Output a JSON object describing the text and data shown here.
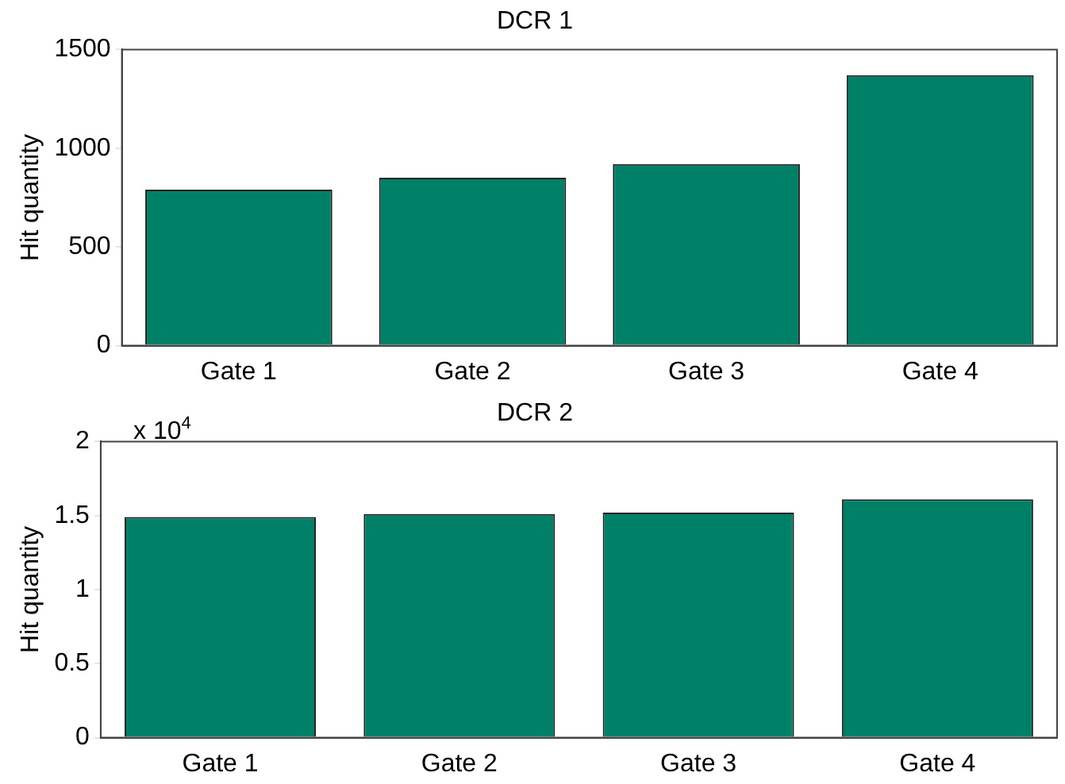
{
  "chart_data": [
    {
      "type": "bar",
      "title": "DCR 1",
      "ylabel": "Hit quantity",
      "categories": [
        "Gate 1",
        "Gate 2",
        "Gate 3",
        "Gate 4"
      ],
      "values": [
        790,
        850,
        920,
        1370
      ],
      "color": "#008066",
      "ylim": [
        0,
        1500
      ],
      "yticks": [
        0,
        500,
        1000,
        1500
      ],
      "grid": false,
      "legend": false
    },
    {
      "type": "bar",
      "title": "DCR 2",
      "ylabel": "Hit quantity",
      "categories": [
        "Gate 1",
        "Gate 2",
        "Gate 3",
        "Gate 4"
      ],
      "values": [
        1.49,
        1.51,
        1.52,
        1.61
      ],
      "color": "#008066",
      "ylim": [
        0,
        2
      ],
      "yticks": [
        0,
        0.5,
        1,
        1.5,
        2
      ],
      "grid": false,
      "legend": false,
      "annotations": [
        "x 10$^{4}$"
      ]
    }
  ]
}
